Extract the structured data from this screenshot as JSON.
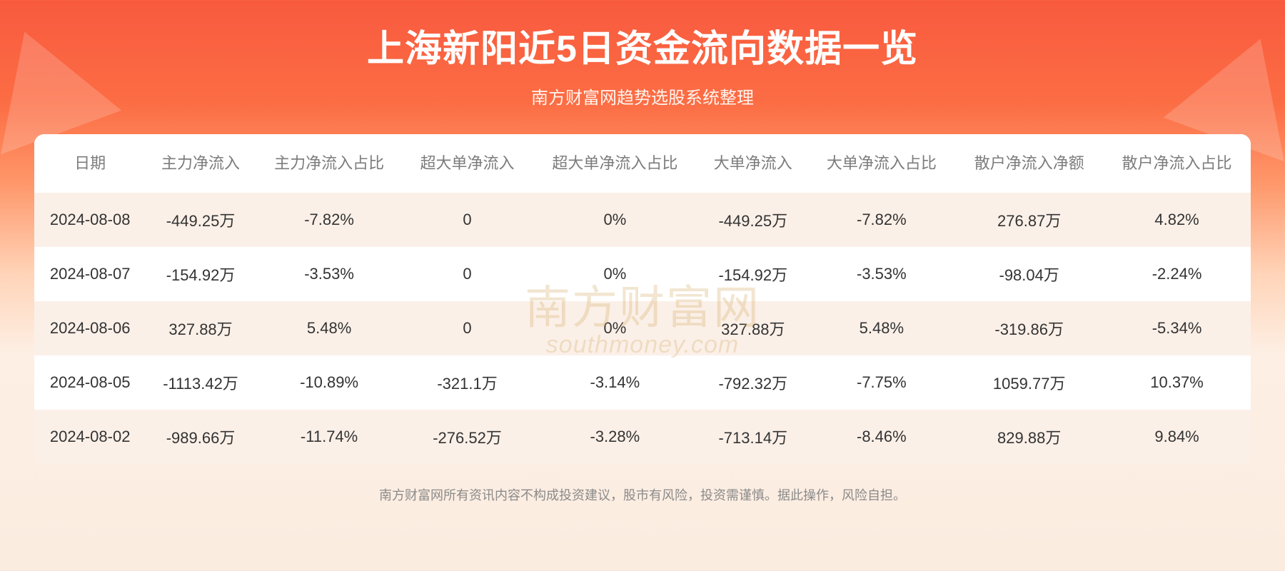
{
  "header": {
    "title": "上海新阳近5日资金流向数据一览",
    "subtitle": "南方财富网趋势选股系统整理"
  },
  "table": {
    "columns": [
      "日期",
      "主力净流入",
      "主力净流入占比",
      "超大单净流入",
      "超大单净流入占比",
      "大单净流入",
      "大单净流入占比",
      "散户净流入净额",
      "散户净流入占比"
    ],
    "rows": [
      [
        "2024-08-08",
        "-449.25万",
        "-7.82%",
        "0",
        "0%",
        "-449.25万",
        "-7.82%",
        "276.87万",
        "4.82%"
      ],
      [
        "2024-08-07",
        "-154.92万",
        "-3.53%",
        "0",
        "0%",
        "-154.92万",
        "-3.53%",
        "-98.04万",
        "-2.24%"
      ],
      [
        "2024-08-06",
        "327.88万",
        "5.48%",
        "0",
        "0%",
        "327.88万",
        "5.48%",
        "-319.86万",
        "-5.34%"
      ],
      [
        "2024-08-05",
        "-1113.42万",
        "-10.89%",
        "-321.1万",
        "-3.14%",
        "-792.32万",
        "-7.75%",
        "1059.77万",
        "10.37%"
      ],
      [
        "2024-08-02",
        "-989.66万",
        "-11.74%",
        "-276.52万",
        "-3.28%",
        "-713.14万",
        "-8.46%",
        "829.88万",
        "9.84%"
      ]
    ],
    "header_fontsize": 22,
    "cell_fontsize": 22,
    "header_color": "#7c7c7c",
    "cell_color": "#333333",
    "row_bg_odd": "#fbf0e8",
    "row_bg_even": "#ffffff",
    "border_radius": 14
  },
  "watermark": {
    "main": "南方财富网",
    "sub": "southmoney.com",
    "color": "rgba(210,165,90,0.28)"
  },
  "disclaimer": "南方财富网所有资讯内容不构成投资建议，股市有风险，投资需谨慎。据此操作，风险自担。",
  "styling": {
    "background_gradient": [
      "#f85a3e",
      "#fc6d44",
      "#fe976a",
      "#ffd4b8",
      "#fdefe4",
      "#fbece0"
    ],
    "title_color": "#ffffff",
    "title_fontsize": 52,
    "subtitle_color": "#fff4ee",
    "subtitle_fontsize": 24,
    "disclaimer_color": "#8a8a8a",
    "disclaimer_fontsize": 18
  }
}
